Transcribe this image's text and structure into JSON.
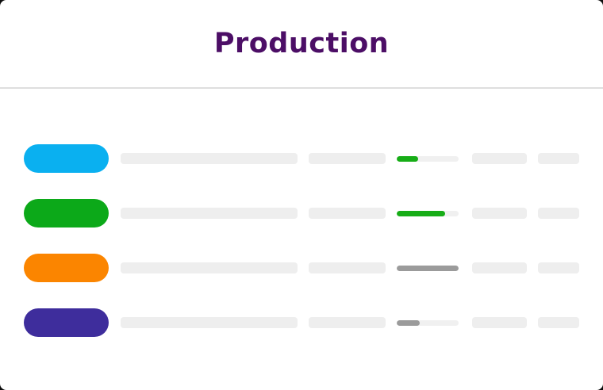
{
  "header": {
    "title": "Production",
    "title_color": "#4c0e66"
  },
  "skeleton": {
    "placeholder_color": "#eeeeee",
    "track_color": "#f0f0f0",
    "divider_color": "#dedede",
    "card_background": "#ffffff"
  },
  "rows": [
    {
      "id": "row-1",
      "pill_color": "#0ab0f0",
      "progress_percent": 35,
      "progress_color": "#17ad17"
    },
    {
      "id": "row-2",
      "pill_color": "#0ca919",
      "progress_percent": 78,
      "progress_color": "#17ad17"
    },
    {
      "id": "row-3",
      "pill_color": "#fb8500",
      "progress_percent": 100,
      "progress_color": "#9b9b9b"
    },
    {
      "id": "row-4",
      "pill_color": "#3e2d9c",
      "progress_percent": 37,
      "progress_color": "#9b9b9b"
    }
  ]
}
